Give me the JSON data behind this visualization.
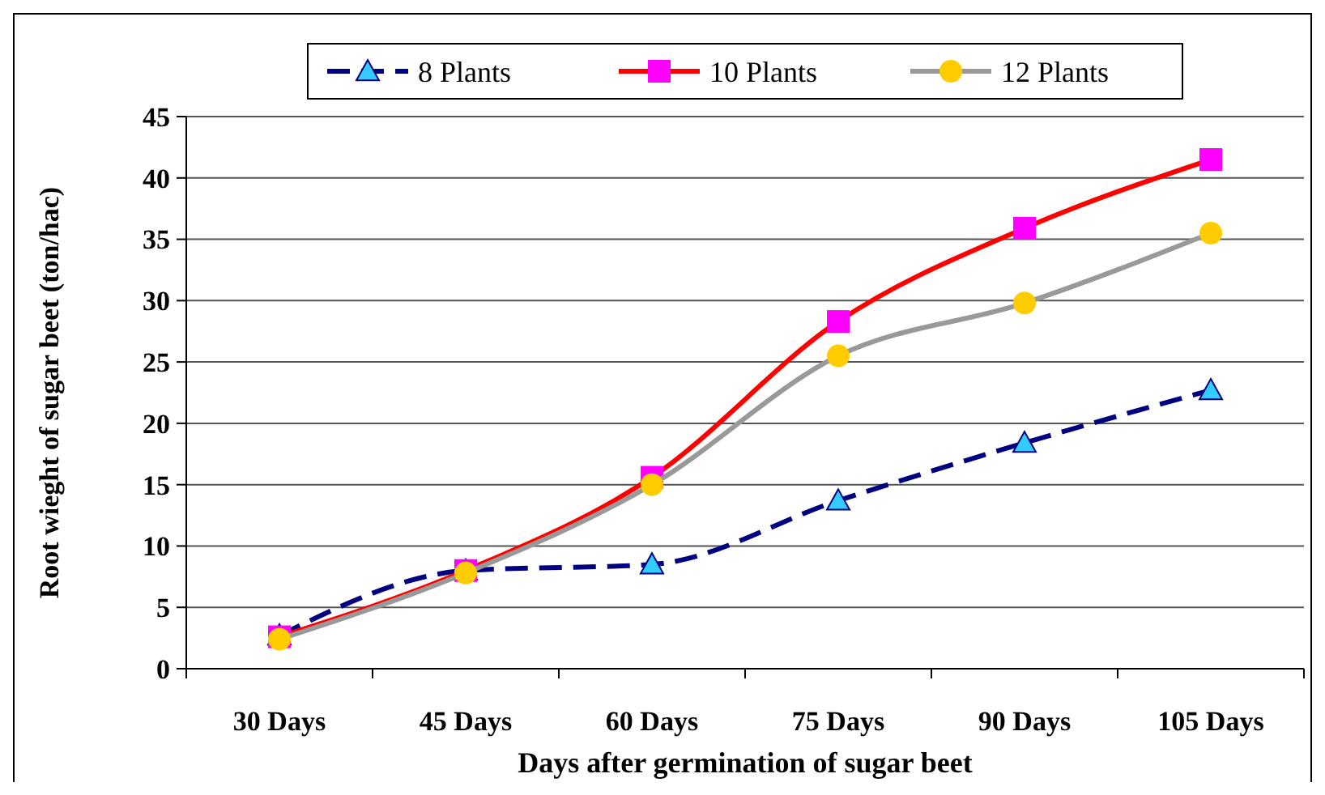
{
  "chart_data": {
    "type": "line",
    "xlabel": "Days after germination of sugar beet",
    "ylabel": "Root wieght of sugar beet (ton/hac)",
    "categories": [
      "30 Days",
      "45 Days",
      "60 Days",
      "75 Days",
      "90 Days",
      "105 Days"
    ],
    "ylim": [
      0,
      45
    ],
    "yticks": [
      0,
      5,
      10,
      15,
      20,
      25,
      30,
      35,
      40,
      45
    ],
    "grid": "y",
    "legend": "top",
    "series": [
      {
        "name": "8 Plants",
        "color": "#000080",
        "marker": "triangle",
        "colors": [
          "#33ccff",
          "#33ccff",
          "#33ccff",
          "#33ccff",
          "#33ccff",
          "#33ccff"
        ],
        "line_style": "dashed",
        "values": [
          2.7,
          8.0,
          8.5,
          13.7,
          18.4,
          22.7
        ]
      },
      {
        "name": "10 Plants",
        "color": "#ff0000",
        "marker": "square",
        "colors": [
          "#ff00ff",
          "#ff00ff",
          "#ff00ff",
          "#ff00ff",
          "#ff00ff",
          "#ff00ff"
        ],
        "line_style": "solid",
        "values": [
          2.6,
          8.0,
          15.6,
          28.3,
          35.9,
          41.5
        ]
      },
      {
        "name": "12 Plants",
        "color": "#999999",
        "marker": "circle",
        "colors": [
          "#ffcc00",
          "#ffcc00",
          "#ffcc00",
          "#ffcc00",
          "#ffcc00",
          "#ffcc00"
        ],
        "line_style": "solid",
        "values": [
          2.4,
          7.8,
          15.0,
          25.5,
          29.8,
          35.5
        ]
      }
    ]
  }
}
